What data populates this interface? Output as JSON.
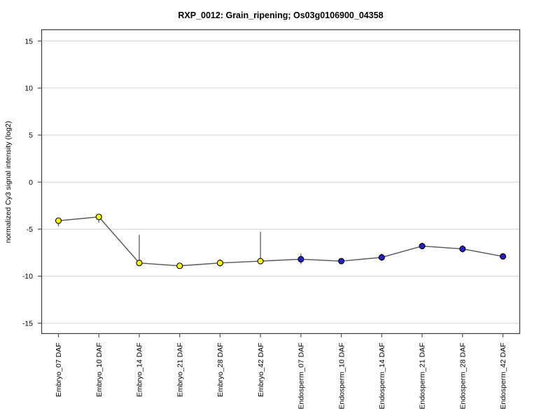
{
  "page": {
    "background": "#FFFFFF"
  },
  "chart_data": {
    "type": "line",
    "title": "RXP_0012: Grain_ripening; Os03g0106900_04358",
    "xlabel": "",
    "ylabel": "normalized Cy3 signal intensity (log2)",
    "categories": [
      "Embryo_07 DAF",
      "Embryo_10 DAF",
      "Embryo_14 DAF",
      "Embryo_21 DAF",
      "Embryo_28 DAF",
      "Embryo_42 DAF",
      "Endosperm_07 DAF",
      "Endosperm_10 DAF",
      "Endosperm_14 DAF",
      "Endosperm_21 DAF",
      "Endosperm_28 DAF",
      "Endosperm_42 DAF"
    ],
    "series": [
      {
        "name": "normalized Cy3 signal intensity (log2)",
        "values": [
          -4.1,
          -3.7,
          -8.6,
          -8.9,
          -8.6,
          -8.4,
          -8.2,
          -8.4,
          -8.0,
          -6.8,
          -7.1,
          -7.9
        ],
        "error_low": [
          -4.7,
          -4.3,
          -8.8,
          -9.0,
          -9.0,
          -8.7,
          -8.7,
          -8.7,
          -8.4,
          -6.9,
          -7.5,
          -8.2
        ],
        "error_high": [
          -3.8,
          -3.6,
          -5.6,
          -8.8,
          -8.2,
          -5.3,
          -7.6,
          -8.1,
          -7.6,
          -6.7,
          -6.7,
          -7.6
        ],
        "point_colors": [
          "#FFFF00",
          "#FFFF00",
          "#FFFF00",
          "#FFFF00",
          "#FFFF00",
          "#FFFF00",
          "#2222CC",
          "#2222CC",
          "#2222CC",
          "#2222CC",
          "#2222CC",
          "#2222CC"
        ]
      }
    ],
    "groups": [
      {
        "name": "Embryo",
        "color": "#FFFF00"
      },
      {
        "name": "Endosperm",
        "color": "#2222CC"
      }
    ],
    "ylim": [
      -16.1,
      16.2
    ],
    "yticks": [
      15,
      10,
      5,
      0,
      -5,
      -10,
      -15
    ],
    "grid": true,
    "legend": "none",
    "colors": {
      "line": "#555555",
      "errorbar": "#666666",
      "marker_outline": "#000000",
      "grid": "#D3D3D3",
      "axis_box": "#3A3A3A",
      "tick": "#555555",
      "text": "#000000"
    }
  }
}
